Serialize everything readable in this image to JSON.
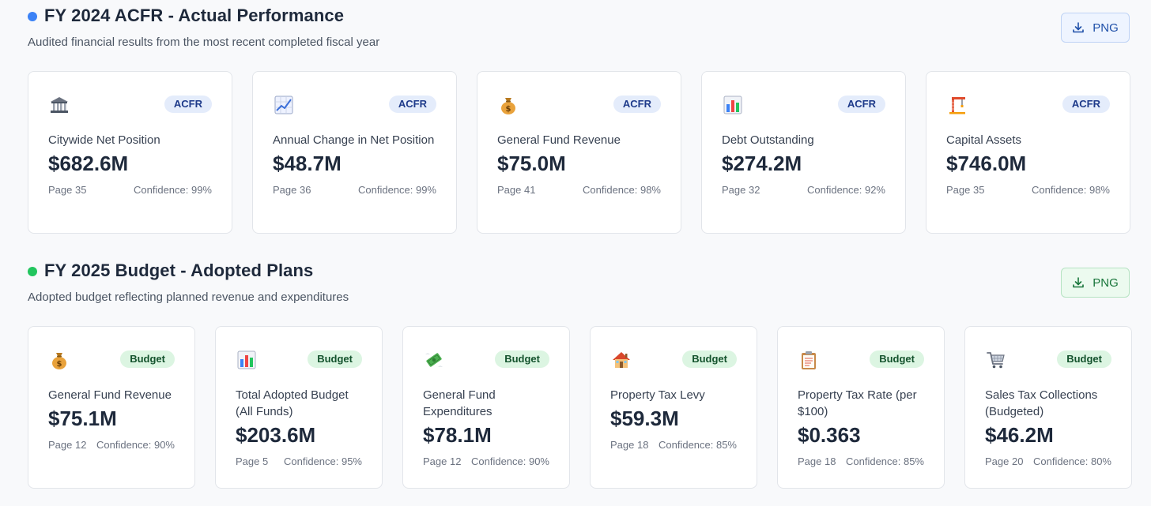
{
  "sections": [
    {
      "title": "FY 2024 ACFR - Actual Performance",
      "subtitle": "Audited financial results from the most recent completed fiscal year",
      "dot_color": "#3b82f6",
      "export_label": "PNG",
      "cards": [
        {
          "icon": "bank-icon",
          "badge": "ACFR",
          "label": "Citywide Net Position",
          "value": "$682.6M",
          "page": "Page 35",
          "confidence": "Confidence: 99%"
        },
        {
          "icon": "chart-increasing-icon",
          "badge": "ACFR",
          "label": "Annual Change in Net Position",
          "value": "$48.7M",
          "page": "Page 36",
          "confidence": "Confidence: 99%"
        },
        {
          "icon": "money-bag-icon",
          "badge": "ACFR",
          "label": "General Fund Revenue",
          "value": "$75.0M",
          "page": "Page 41",
          "confidence": "Confidence: 98%"
        },
        {
          "icon": "bar-chart-icon",
          "badge": "ACFR",
          "label": "Debt Outstanding",
          "value": "$274.2M",
          "page": "Page 32",
          "confidence": "Confidence: 92%"
        },
        {
          "icon": "construction-crane-icon",
          "badge": "ACFR",
          "label": "Capital Assets",
          "value": "$746.0M",
          "page": "Page 35",
          "confidence": "Confidence: 98%"
        }
      ]
    },
    {
      "title": "FY 2025 Budget - Adopted Plans",
      "subtitle": "Adopted budget reflecting planned revenue and expenditures",
      "dot_color": "#22c55e",
      "export_label": "PNG",
      "cards": [
        {
          "icon": "money-bag-icon",
          "badge": "Budget",
          "label": "General Fund Revenue",
          "value": "$75.1M",
          "page": "Page 12",
          "confidence": "Confidence: 90%"
        },
        {
          "icon": "bar-chart-icon",
          "badge": "Budget",
          "label": "Total Adopted Budget (All Funds)",
          "value": "$203.6M",
          "page": "Page 5",
          "confidence": "Confidence: 95%"
        },
        {
          "icon": "money-with-wings-icon",
          "badge": "Budget",
          "label": "General Fund Expenditures",
          "value": "$78.1M",
          "page": "Page 12",
          "confidence": "Confidence: 90%"
        },
        {
          "icon": "house-icon",
          "badge": "Budget",
          "label": "Property Tax Levy",
          "value": "$59.3M",
          "page": "Page 18",
          "confidence": "Confidence: 85%"
        },
        {
          "icon": "clipboard-icon",
          "badge": "Budget",
          "label": "Property Tax Rate (per $100)",
          "value": "$0.363",
          "page": "Page 18",
          "confidence": "Confidence: 85%"
        },
        {
          "icon": "shopping-cart-icon",
          "badge": "Budget",
          "label": "Sales Tax Collections (Budgeted)",
          "value": "$46.2M",
          "page": "Page 20",
          "confidence": "Confidence: 80%"
        }
      ]
    }
  ]
}
